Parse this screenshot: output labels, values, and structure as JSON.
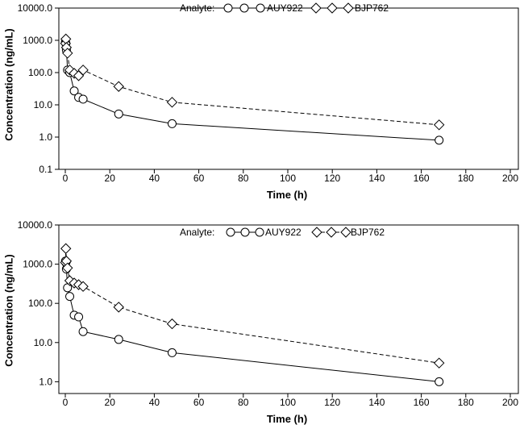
{
  "chart_data": [
    {
      "type": "line",
      "xlabel": "Time (h)",
      "ylabel": "Concentration (ng/mL)",
      "yscale": "log",
      "xlim": [
        0,
        200
      ],
      "ylim": [
        0.1,
        10000
      ],
      "xticks": [
        "0",
        "20",
        "40",
        "60",
        "80",
        "100",
        "120",
        "140",
        "160",
        "180",
        "200"
      ],
      "yticks": [
        "0.1",
        "1.0",
        "10.0",
        "100.0",
        "1000.0",
        "10000.0"
      ],
      "legend_title": "Analyte:",
      "legend_position": "top-center",
      "series": [
        {
          "name": "AUY922",
          "marker": "circle",
          "style": "solid",
          "x": [
            0.08,
            0.25,
            0.5,
            1,
            2,
            4,
            6,
            8,
            24,
            48,
            168
          ],
          "y": [
            900,
            800,
            500,
            120,
            100,
            27,
            17,
            15,
            5.2,
            2.6,
            0.8
          ]
        },
        {
          "name": "BJP762",
          "marker": "diamond",
          "style": "dashed",
          "x": [
            0.08,
            0.25,
            0.5,
            1,
            2,
            4,
            6,
            8,
            24,
            48,
            168
          ],
          "y": [
            800,
            1100,
            600,
            400,
            120,
            95,
            80,
            120,
            37,
            12,
            2.4
          ]
        }
      ]
    },
    {
      "type": "line",
      "xlabel": "Time (h)",
      "ylabel": "Concentration (ng/mL)",
      "yscale": "log",
      "xlim": [
        0,
        200
      ],
      "ylim": [
        0.5,
        10000
      ],
      "xticks": [
        "0",
        "20",
        "40",
        "60",
        "80",
        "100",
        "120",
        "140",
        "160",
        "180",
        "200"
      ],
      "yticks": [
        "1.0",
        "10.0",
        "100.0",
        "1000.0",
        "10000.0"
      ],
      "legend_title": "Analyte:",
      "legend_position": "top-center",
      "series": [
        {
          "name": "AUY922",
          "marker": "circle",
          "style": "solid",
          "x": [
            0.08,
            0.25,
            0.5,
            1,
            2,
            4,
            6,
            8,
            24,
            48,
            168
          ],
          "y": [
            1200,
            1100,
            750,
            250,
            150,
            50,
            45,
            19,
            12,
            5.5,
            1.0
          ]
        },
        {
          "name": "BJP762",
          "marker": "diamond",
          "style": "dashed",
          "x": [
            0.08,
            0.25,
            0.5,
            1,
            2,
            4,
            6,
            8,
            24,
            48,
            168
          ],
          "y": [
            1100,
            2500,
            1200,
            800,
            380,
            330,
            300,
            270,
            80,
            30,
            3.0
          ]
        }
      ]
    }
  ]
}
